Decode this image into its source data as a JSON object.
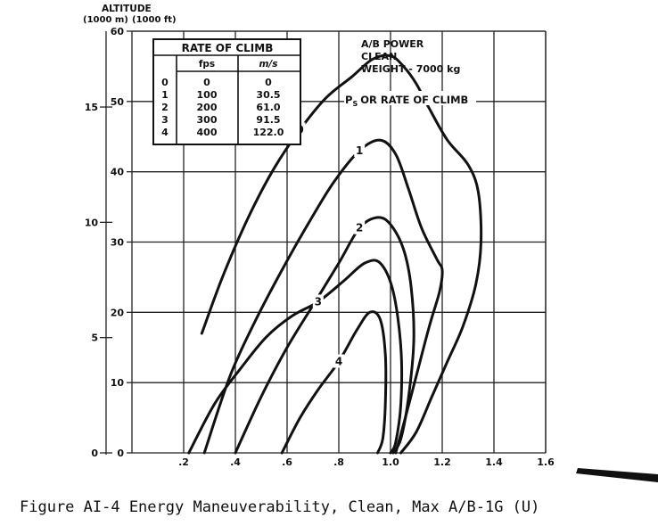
{
  "chart_data": {
    "type": "line",
    "title": "",
    "notes": [
      "A/B POWER",
      "CLEAN",
      "WEIGHT - 7000 kg"
    ],
    "annotation": "P_S OR RATE OF CLIMB",
    "ylabel": "ALTITUDE",
    "y_units": [
      "(1000 m)",
      "(1000 ft)"
    ],
    "x_ticks": [
      ".2",
      ".4",
      ".6",
      ".8",
      "1.0",
      "1.2",
      "1.4",
      "1.6"
    ],
    "xlim": [
      0,
      1.6
    ],
    "ylim": [
      0,
      60
    ],
    "y_ticks_ft": [
      "0",
      "10",
      "20",
      "30",
      "40",
      "50",
      "60"
    ],
    "y_ticks_m": [
      "0",
      "5",
      "10",
      "15"
    ],
    "legend_table": {
      "title": "RATE OF CLIMB",
      "headers": [
        "",
        "fps",
        "m/s"
      ],
      "rows": [
        [
          "0",
          "0",
          "0"
        ],
        [
          "1",
          "100",
          "30.5"
        ],
        [
          "2",
          "200",
          "61.0"
        ],
        [
          "3",
          "300",
          "91.5"
        ],
        [
          "4",
          "400",
          "122.0"
        ]
      ]
    },
    "series": [
      {
        "name": "0",
        "x": [
          0.27,
          0.35,
          0.45,
          0.55,
          0.65,
          0.75,
          0.85,
          0.93,
          1.0,
          1.05,
          1.1,
          1.15,
          1.22,
          1.3,
          1.34,
          1.35,
          1.33,
          1.28,
          1.22,
          1.16,
          1.1,
          1.04
        ],
        "y": [
          17,
          25,
          33.5,
          40.5,
          46,
          50.5,
          53.5,
          56,
          56.5,
          55,
          52.5,
          49,
          44.5,
          41,
          37,
          30,
          24,
          18,
          13,
          8,
          3,
          0
        ]
      },
      {
        "name": "1",
        "x": [
          0.28,
          0.38,
          0.48,
          0.58,
          0.68,
          0.78,
          0.88,
          0.96,
          1.02,
          1.07,
          1.12,
          1.18,
          1.2,
          1.19,
          1.15,
          1.1,
          1.05,
          1.02
        ],
        "y": [
          0,
          11,
          19,
          26,
          32.5,
          38.5,
          43,
          44.5,
          42.5,
          37.5,
          32,
          27.5,
          26,
          23,
          18,
          11,
          4,
          0
        ]
      },
      {
        "name": "2",
        "x": [
          0.4,
          0.5,
          0.6,
          0.7,
          0.8,
          0.88,
          0.95,
          1.0,
          1.05,
          1.08,
          1.09,
          1.07,
          1.04,
          1.01
        ],
        "y": [
          0,
          8,
          15,
          21,
          27,
          32,
          33.5,
          32.5,
          29,
          23.5,
          16,
          8,
          2,
          0
        ]
      },
      {
        "name": "3",
        "x": [
          0.22,
          0.32,
          0.42,
          0.52,
          0.62,
          0.72,
          0.82,
          0.9,
          0.96,
          1.01,
          1.04,
          1.04,
          1.02,
          1.0
        ],
        "y": [
          0,
          7,
          12,
          16.5,
          19.5,
          21.5,
          24.5,
          27,
          27,
          23,
          15,
          7,
          1.5,
          0
        ]
      },
      {
        "name": "4",
        "x": [
          0.58,
          0.65,
          0.72,
          0.8,
          0.87,
          0.92,
          0.96,
          0.98,
          0.98,
          0.97,
          0.95
        ],
        "y": [
          0,
          5,
          9,
          13,
          17.5,
          20,
          19,
          14,
          7,
          2,
          0
        ]
      }
    ]
  },
  "caption": "Figure AI-4  Energy Maneuverability, Clean, Max A/B-1G (U)"
}
